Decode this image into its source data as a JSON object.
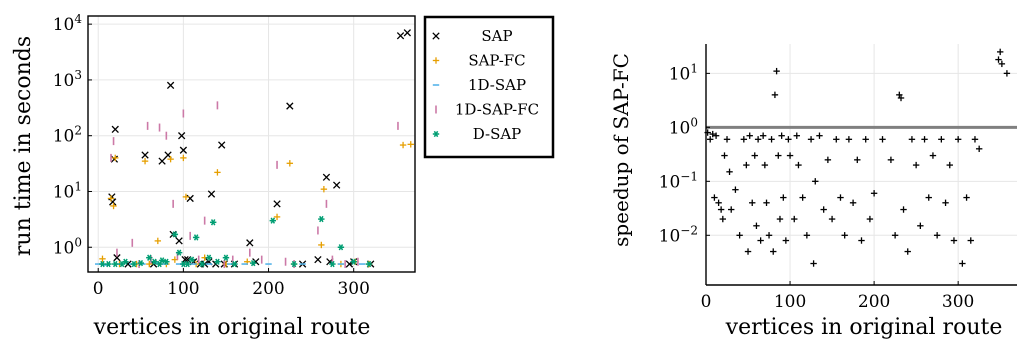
{
  "figure": {
    "left": {
      "ylabel": "run time in seconds",
      "xlabel": "vertices in original route",
      "x_ticks": [
        "0",
        "100",
        "200",
        "300"
      ],
      "y_ticks": [
        {
          "base": "10",
          "exp": "4"
        },
        {
          "base": "10",
          "exp": "3"
        },
        {
          "base": "10",
          "exp": "2"
        },
        {
          "base": "10",
          "exp": "1"
        },
        {
          "base": "10",
          "exp": "0"
        }
      ],
      "legend": [
        "SAP",
        "SAP-FC",
        "1D-SAP",
        "1D-SAP-FC",
        "D-SAP"
      ]
    },
    "right": {
      "ylabel": "speedup of SAP-FC",
      "xlabel": "vertices in original route",
      "x_ticks": [
        "0",
        "100",
        "200",
        "300"
      ],
      "y_ticks": [
        {
          "base": "10",
          "exp": "1"
        },
        {
          "base": "10",
          "exp": "0"
        },
        {
          "base": "10",
          "exp": "−1"
        },
        {
          "base": "10",
          "exp": "−2"
        }
      ]
    }
  },
  "colors": {
    "SAP": "#000000",
    "SAP-FC": "#e69f00",
    "1D-SAP": "#56b4e9",
    "1D-SAP-FC": "#cc79a7",
    "D-SAP": "#009e73",
    "reference_line": "#808080",
    "speedup_marker": "#000000"
  },
  "chart_data": [
    {
      "type": "scatter",
      "xlabel": "vertices in original route",
      "ylabel": "run time in seconds",
      "xlim": [
        -12,
        372
      ],
      "ylim": [
        0.36,
        14000
      ],
      "yscale": "log",
      "grid": true,
      "legend_position": "right",
      "series": [
        {
          "name": "SAP",
          "marker": "x",
          "points": [
            [
              16,
              8
            ],
            [
              17,
              6.5
            ],
            [
              19,
              38
            ],
            [
              20,
              130
            ],
            [
              22,
              0.65
            ],
            [
              35,
              0.5
            ],
            [
              55,
              45
            ],
            [
              65,
              0.5
            ],
            [
              75,
              35
            ],
            [
              82,
              45
            ],
            [
              85,
              800
            ],
            [
              88,
              1.7
            ],
            [
              95,
              1.3
            ],
            [
              98,
              100
            ],
            [
              100,
              55
            ],
            [
              102,
              0.6
            ],
            [
              105,
              0.6
            ],
            [
              108,
              7.5
            ],
            [
              112,
              0.55
            ],
            [
              120,
              0.5
            ],
            [
              125,
              0.5
            ],
            [
              130,
              0.55
            ],
            [
              133,
              9
            ],
            [
              138,
              0.5
            ],
            [
              145,
              68
            ],
            [
              148,
              0.5
            ],
            [
              160,
              0.5
            ],
            [
              178,
              1.2
            ],
            [
              185,
              0.55
            ],
            [
              210,
              6
            ],
            [
              225,
              340
            ],
            [
              240,
              0.5
            ],
            [
              258,
              0.6
            ],
            [
              268,
              18
            ],
            [
              272,
              0.55
            ],
            [
              280,
              13
            ],
            [
              295,
              0.5
            ],
            [
              300,
              0.55
            ],
            [
              320,
              0.5
            ],
            [
              355,
              6200
            ],
            [
              363,
              7000
            ]
          ]
        },
        {
          "name": "SAP-FC",
          "marker": "+",
          "points": [
            [
              5,
              0.62
            ],
            [
              15,
              7.5
            ],
            [
              18,
              5.5
            ],
            [
              20,
              40
            ],
            [
              25,
              0.5
            ],
            [
              45,
              0.5
            ],
            [
              55,
              35
            ],
            [
              60,
              0.5
            ],
            [
              70,
              1.3
            ],
            [
              80,
              0.5
            ],
            [
              85,
              38
            ],
            [
              90,
              0.6
            ],
            [
              100,
              40
            ],
            [
              103,
              8
            ],
            [
              115,
              0.5
            ],
            [
              125,
              0.65
            ],
            [
              140,
              22
            ],
            [
              150,
              0.5
            ],
            [
              175,
              0.55
            ],
            [
              210,
              3.5
            ],
            [
              225,
              32
            ],
            [
              230,
              0.5
            ],
            [
              262,
              1.1
            ],
            [
              265,
              11
            ],
            [
              285,
              0.5
            ],
            [
              302,
              0.55
            ],
            [
              318,
              0.5
            ],
            [
              358,
              68
            ],
            [
              367,
              70
            ]
          ]
        },
        {
          "name": "1D-SAP",
          "marker": "-",
          "points": [
            [
              0,
              0.5
            ],
            [
              10,
              0.48
            ],
            [
              22,
              0.5
            ],
            [
              40,
              0.5
            ],
            [
              52,
              0.5
            ],
            [
              68,
              0.52
            ],
            [
              78,
              0.5
            ],
            [
              95,
              0.5
            ],
            [
              112,
              0.5
            ],
            [
              130,
              0.5
            ],
            [
              155,
              0.5
            ],
            [
              172,
              0.5
            ],
            [
              200,
              0.5
            ],
            [
              240,
              0.5
            ],
            [
              285,
              0.5
            ],
            [
              310,
              0.5
            ]
          ]
        },
        {
          "name": "1D-SAP-FC",
          "marker": "|",
          "points": [
            [
              15,
              40
            ],
            [
              18,
              80
            ],
            [
              22,
              0.8
            ],
            [
              40,
              1.2
            ],
            [
              48,
              0.5
            ],
            [
              58,
              150
            ],
            [
              62,
              0.6
            ],
            [
              72,
              140
            ],
            [
              80,
              100
            ],
            [
              88,
              6
            ],
            [
              93,
              0.7
            ],
            [
              100,
              250
            ],
            [
              108,
              1.6
            ],
            [
              118,
              0.6
            ],
            [
              125,
              3
            ],
            [
              140,
              350
            ],
            [
              148,
              0.5
            ],
            [
              158,
              0.6
            ],
            [
              178,
              0.8
            ],
            [
              192,
              0.6
            ],
            [
              210,
              30
            ],
            [
              220,
              0.55
            ],
            [
              230,
              0.5
            ],
            [
              258,
              2
            ],
            [
              268,
              6
            ],
            [
              275,
              0.6
            ],
            [
              290,
              0.5
            ],
            [
              305,
              0.55
            ],
            [
              352,
              150
            ]
          ]
        },
        {
          "name": "D-SAP",
          "marker": "*",
          "points": [
            [
              5,
              0.5
            ],
            [
              12,
              0.5
            ],
            [
              20,
              0.5
            ],
            [
              28,
              0.5
            ],
            [
              32,
              0.55
            ],
            [
              42,
              0.5
            ],
            [
              50,
              0.52
            ],
            [
              60,
              0.65
            ],
            [
              66,
              0.55
            ],
            [
              72,
              0.5
            ],
            [
              75,
              0.58
            ],
            [
              80,
              0.55
            ],
            [
              90,
              1.7
            ],
            [
              95,
              0.8
            ],
            [
              100,
              0.5
            ],
            [
              105,
              0.5
            ],
            [
              110,
              0.6
            ],
            [
              115,
              1.5
            ],
            [
              122,
              0.5
            ],
            [
              130,
              0.65
            ],
            [
              135,
              2.8
            ],
            [
              140,
              0.55
            ],
            [
              150,
              0.65
            ],
            [
              160,
              0.5
            ],
            [
              182,
              0.52
            ],
            [
              205,
              3
            ],
            [
              230,
              0.5
            ],
            [
              262,
              3.2
            ],
            [
              275,
              0.5
            ],
            [
              285,
              1
            ],
            [
              300,
              0.55
            ],
            [
              318,
              0.5
            ]
          ]
        }
      ]
    },
    {
      "type": "scatter",
      "xlabel": "vertices in original route",
      "ylabel": "speedup of SAP-FC",
      "xlim": [
        0,
        370
      ],
      "ylim": [
        0.0012,
        35
      ],
      "yscale": "log",
      "grid": true,
      "reference_line_y": 1,
      "series": [
        {
          "name": "speedup of SAP-FC",
          "marker": "+",
          "points": [
            [
              2,
              0.8
            ],
            [
              5,
              0.6
            ],
            [
              8,
              0.75
            ],
            [
              10,
              0.05
            ],
            [
              12,
              0.7
            ],
            [
              15,
              0.04
            ],
            [
              18,
              0.03
            ],
            [
              20,
              0.02
            ],
            [
              22,
              0.3
            ],
            [
              25,
              0.6
            ],
            [
              28,
              0.15
            ],
            [
              30,
              0.03
            ],
            [
              35,
              0.07
            ],
            [
              40,
              0.01
            ],
            [
              45,
              0.6
            ],
            [
              48,
              0.2
            ],
            [
              50,
              0.005
            ],
            [
              52,
              0.7
            ],
            [
              55,
              0.04
            ],
            [
              58,
              0.3
            ],
            [
              60,
              0.015
            ],
            [
              62,
              0.6
            ],
            [
              65,
              0.008
            ],
            [
              68,
              0.7
            ],
            [
              70,
              0.2
            ],
            [
              72,
              0.04
            ],
            [
              75,
              0.01
            ],
            [
              78,
              0.6
            ],
            [
              80,
              0.005
            ],
            [
              82,
              4
            ],
            [
              84,
              11
            ],
            [
              86,
              0.3
            ],
            [
              88,
              0.02
            ],
            [
              90,
              0.7
            ],
            [
              92,
              0.05
            ],
            [
              95,
              0.008
            ],
            [
              98,
              0.6
            ],
            [
              100,
              0.3
            ],
            [
              105,
              0.02
            ],
            [
              108,
              0.7
            ],
            [
              110,
              0.2
            ],
            [
              115,
              0.05
            ],
            [
              120,
              0.01
            ],
            [
              125,
              0.6
            ],
            [
              128,
              0.003
            ],
            [
              130,
              0.1
            ],
            [
              135,
              0.7
            ],
            [
              140,
              0.03
            ],
            [
              145,
              0.25
            ],
            [
              150,
              0.02
            ],
            [
              155,
              0.6
            ],
            [
              160,
              0.05
            ],
            [
              165,
              0.01
            ],
            [
              170,
              0.6
            ],
            [
              175,
              0.04
            ],
            [
              180,
              0.25
            ],
            [
              185,
              0.008
            ],
            [
              190,
              0.6
            ],
            [
              195,
              0.02
            ],
            [
              200,
              0.06
            ],
            [
              210,
              0.6
            ],
            [
              220,
              0.25
            ],
            [
              225,
              0.01
            ],
            [
              230,
              4
            ],
            [
              232,
              3.5
            ],
            [
              235,
              0.03
            ],
            [
              240,
              0.005
            ],
            [
              245,
              0.6
            ],
            [
              250,
              0.2
            ],
            [
              255,
              0.015
            ],
            [
              260,
              0.6
            ],
            [
              265,
              0.05
            ],
            [
              270,
              0.3
            ],
            [
              275,
              0.01
            ],
            [
              280,
              0.6
            ],
            [
              285,
              0.04
            ],
            [
              290,
              0.2
            ],
            [
              295,
              0.008
            ],
            [
              300,
              0.6
            ],
            [
              305,
              0.003
            ],
            [
              310,
              0.05
            ],
            [
              315,
              0.008
            ],
            [
              320,
              0.6
            ],
            [
              325,
              0.4
            ],
            [
              348,
              18
            ],
            [
              350,
              25
            ],
            [
              352,
              15
            ],
            [
              358,
              10
            ]
          ]
        }
      ]
    }
  ]
}
